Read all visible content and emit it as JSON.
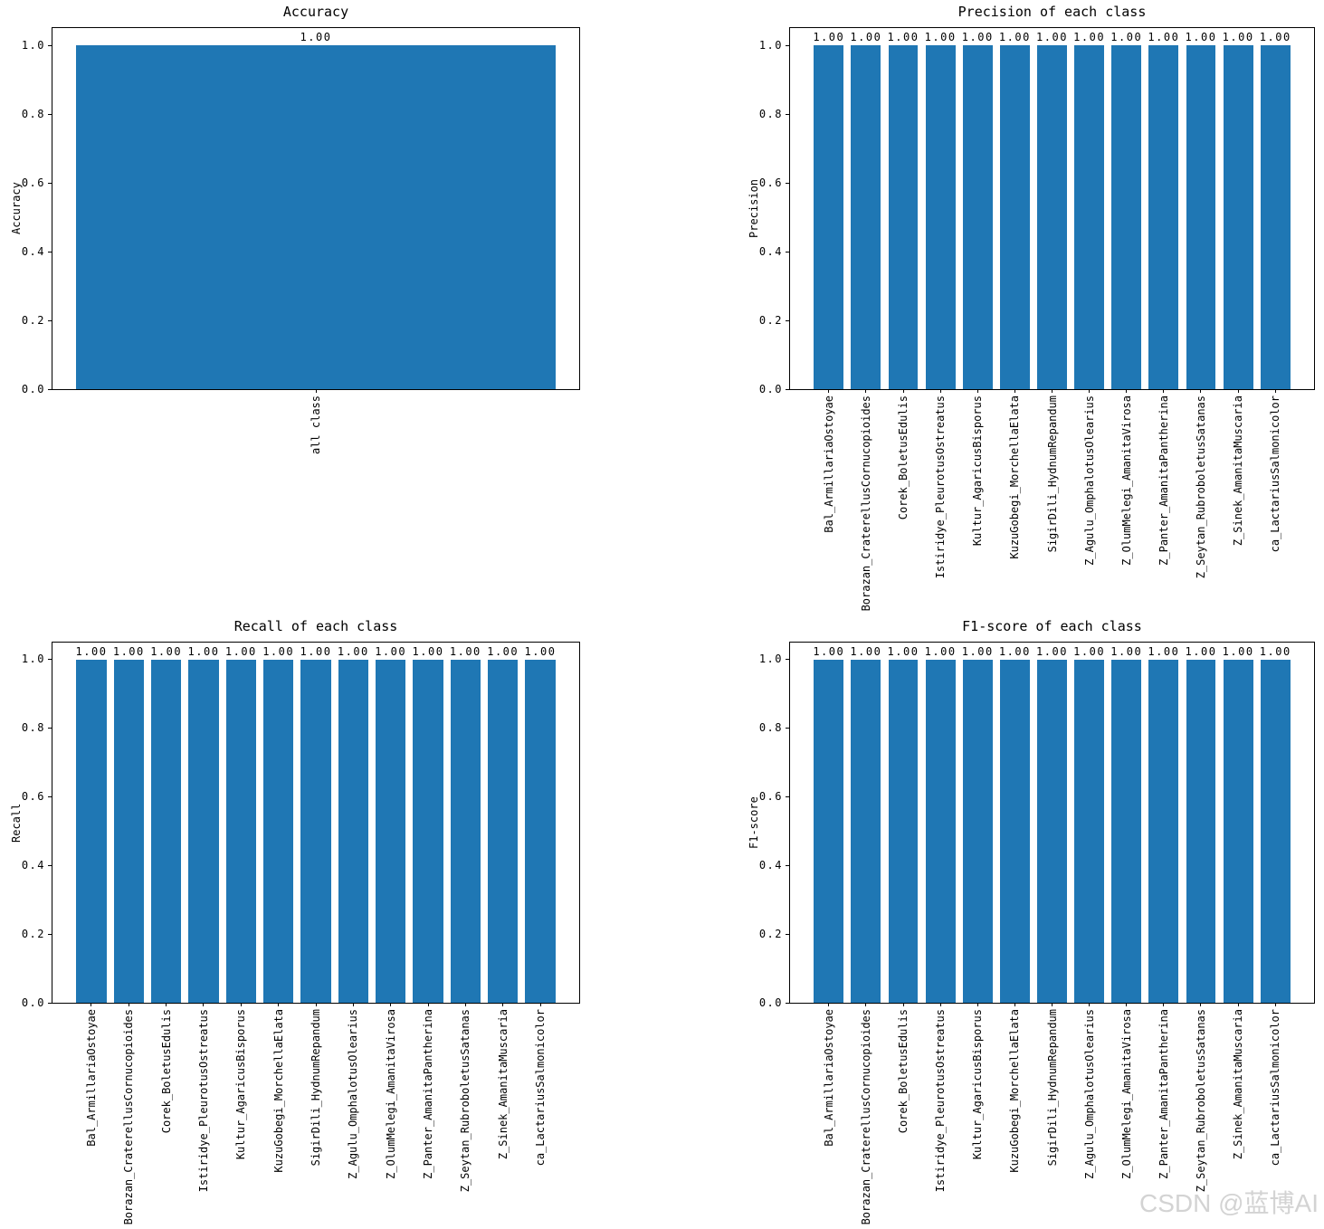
{
  "colors": {
    "bar": "#1f77b4",
    "axis": "#000000",
    "text": "#000000",
    "watermark": "#d3d3d3"
  },
  "ytick_labels": [
    "0.0",
    "0.2",
    "0.4",
    "0.6",
    "0.8",
    "1.0"
  ],
  "watermark": {
    "text": "CSDN @蓝博AI"
  },
  "chart_data": [
    {
      "type": "bar",
      "title": "Accuracy",
      "ylabel": "Accuracy",
      "xlabel": "",
      "categories": [
        "all class"
      ],
      "values": [
        1.0
      ],
      "ylim": [
        0,
        1.05
      ],
      "bar_width": 0.8,
      "grid": false,
      "legend": null,
      "value_label_format": "1.00"
    },
    {
      "type": "bar",
      "title": "Precision of each class",
      "ylabel": "Precision",
      "xlabel": "",
      "categories": [
        "Bal_ArmillariaOstoyae",
        "Borazan_CraterellusCornucopioides",
        "Corek_BoletusEdulis",
        "Istiridye_PleurotusOstreatus",
        "Kultur_AgaricusBisporus",
        "KuzuGobegi_MorchellaElata",
        "SigirDili_HydnumRepandum",
        "Z_Agulu_OmphalotusOlearius",
        "Z_OlumMelegi_AmanitaVirosa",
        "Z_Panter_AmanitaPantherina",
        "Z_Seytan_RubroboletusSatanas",
        "Z_Sinek_AmanitaMuscaria",
        "ca_LactariusSalmonicolor"
      ],
      "values": [
        1.0,
        1.0,
        1.0,
        1.0,
        1.0,
        1.0,
        1.0,
        1.0,
        1.0,
        1.0,
        1.0,
        1.0,
        1.0
      ],
      "ylim": [
        0,
        1.05
      ],
      "bar_width": 0.8,
      "grid": false,
      "legend": null,
      "value_label_format": "1.00"
    },
    {
      "type": "bar",
      "title": "Recall of each class",
      "ylabel": "Recall",
      "xlabel": "",
      "categories": [
        "Bal_ArmillariaOstoyae",
        "Borazan_CraterellusCornucopioides",
        "Corek_BoletusEdulis",
        "Istiridye_PleurotusOstreatus",
        "Kultur_AgaricusBisporus",
        "KuzuGobegi_MorchellaElata",
        "SigirDili_HydnumRepandum",
        "Z_Agulu_OmphalotusOlearius",
        "Z_OlumMelegi_AmanitaVirosa",
        "Z_Panter_AmanitaPantherina",
        "Z_Seytan_RubroboletusSatanas",
        "Z_Sinek_AmanitaMuscaria",
        "ca_LactariusSalmonicolor"
      ],
      "values": [
        1.0,
        1.0,
        1.0,
        1.0,
        1.0,
        1.0,
        1.0,
        1.0,
        1.0,
        1.0,
        1.0,
        1.0,
        1.0
      ],
      "ylim": [
        0,
        1.05
      ],
      "bar_width": 0.8,
      "grid": false,
      "legend": null,
      "value_label_format": "1.00"
    },
    {
      "type": "bar",
      "title": "F1-score of each class",
      "ylabel": "F1-score",
      "xlabel": "",
      "categories": [
        "Bal_ArmillariaOstoyae",
        "Borazan_CraterellusCornucopioides",
        "Corek_BoletusEdulis",
        "Istiridye_PleurotusOstreatus",
        "Kultur_AgaricusBisporus",
        "KuzuGobegi_MorchellaElata",
        "SigirDili_HydnumRepandum",
        "Z_Agulu_OmphalotusOlearius",
        "Z_OlumMelegi_AmanitaVirosa",
        "Z_Panter_AmanitaPantherina",
        "Z_Seytan_RubroboletusSatanas",
        "Z_Sinek_AmanitaMuscaria",
        "ca_LactariusSalmonicolor"
      ],
      "values": [
        1.0,
        1.0,
        1.0,
        1.0,
        1.0,
        1.0,
        1.0,
        1.0,
        1.0,
        1.0,
        1.0,
        1.0,
        1.0
      ],
      "ylim": [
        0,
        1.05
      ],
      "bar_width": 0.8,
      "grid": false,
      "legend": null,
      "value_label_format": "1.00"
    }
  ]
}
